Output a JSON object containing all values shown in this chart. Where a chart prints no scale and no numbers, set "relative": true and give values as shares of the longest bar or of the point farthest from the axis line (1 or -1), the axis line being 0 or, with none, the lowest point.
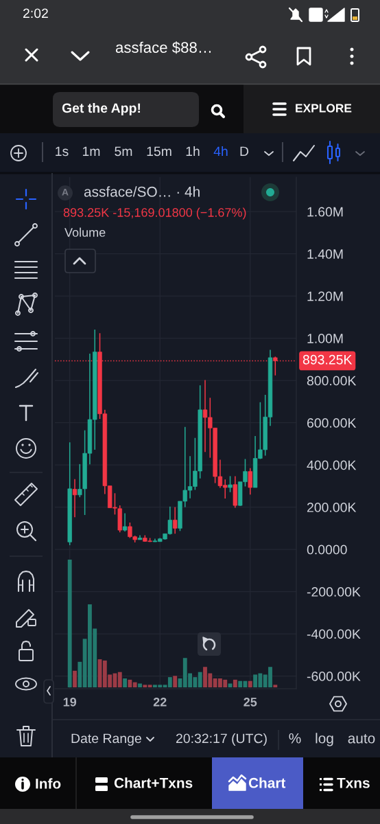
{
  "chart_data": [
    {
      "type": "candlestick",
      "title": "assface/SO… · 4h",
      "categories": [
        "19",
        null,
        null,
        null,
        null,
        null,
        null,
        null,
        null,
        null,
        null,
        null,
        null,
        null,
        null,
        null,
        null,
        null,
        "22",
        null,
        null,
        null,
        null,
        null,
        null,
        null,
        null,
        null,
        null,
        null,
        null,
        null,
        null,
        null,
        null,
        null,
        "25",
        null,
        null,
        null,
        null,
        null
      ],
      "ohlc": [
        [
          35000,
          507000,
          20000,
          287000
        ],
        [
          285000,
          333000,
          152000,
          258000
        ],
        [
          258000,
          404000,
          247000,
          285000
        ],
        [
          287000,
          564000,
          163000,
          455000
        ],
        [
          455000,
          927000,
          403000,
          615000
        ],
        [
          615000,
          1041000,
          472000,
          935000
        ],
        [
          935000,
          1024000,
          618000,
          642000
        ],
        [
          642000,
          661000,
          262000,
          301000
        ],
        [
          301000,
          301000,
          197000,
          197000
        ],
        [
          199000,
          266000,
          165000,
          195000
        ],
        [
          193000,
          208000,
          81000,
          91000
        ],
        [
          91000,
          171000,
          85000,
          108000
        ],
        [
          108000,
          127000,
          54000,
          60000
        ],
        [
          60000,
          65000,
          33000,
          46000
        ],
        [
          46000,
          67000,
          46000,
          54000
        ],
        [
          54000,
          67000,
          36000,
          38000
        ],
        [
          40000,
          54000,
          35000,
          37000
        ],
        [
          36000,
          51000,
          35000,
          40000
        ],
        [
          37000,
          54000,
          36000,
          50000
        ],
        [
          49000,
          74000,
          46000,
          74000
        ],
        [
          74000,
          203000,
          70000,
          139000
        ],
        [
          139000,
          200000,
          74000,
          100000
        ],
        [
          100000,
          228000,
          87000,
          228000
        ],
        [
          228000,
          580000,
          200000,
          280000
        ],
        [
          280000,
          442000,
          242000,
          298000
        ],
        [
          298000,
          528000,
          282000,
          371000
        ],
        [
          371000,
          777000,
          336000,
          661000
        ],
        [
          661000,
          802000,
          461000,
          625000
        ],
        [
          625000,
          718000,
          434000,
          575000
        ],
        [
          575000,
          575000,
          314000,
          345000
        ],
        [
          345000,
          425000,
          291000,
          301000
        ],
        [
          304000,
          331000,
          241000,
          293000
        ],
        [
          293000,
          347000,
          271000,
          306000
        ],
        [
          307000,
          347000,
          197000,
          208000
        ],
        [
          208000,
          320000,
          206000,
          320000
        ],
        [
          320000,
          428000,
          298000,
          369000
        ],
        [
          369000,
          385000,
          260000,
          293000
        ],
        [
          293000,
          537000,
          293000,
          431000
        ],
        [
          431000,
          697000,
          428000,
          472000
        ],
        [
          472000,
          732000,
          444000,
          627000
        ],
        [
          627000,
          945000,
          585000,
          908000
        ],
        [
          908000,
          913000,
          824000,
          893250
        ]
      ],
      "colors": [
        "#22ab94",
        "#f23645",
        "#22ab94",
        "#22ab94",
        "#22ab94",
        "#22ab94",
        "#f23645",
        "#f23645",
        "#f23645",
        "#f23645",
        "#f23645",
        "#22ab94",
        "#f23645",
        "#f23645",
        "#22ab94",
        "#f23645",
        "#f23645",
        "#22ab94",
        "#22ab94",
        "#22ab94",
        "#22ab94",
        "#f23645",
        "#22ab94",
        "#22ab94",
        "#22ab94",
        "#22ab94",
        "#22ab94",
        "#f23645",
        "#f23645",
        "#f23645",
        "#f23645",
        "#f23645",
        "#22ab94",
        "#f23645",
        "#22ab94",
        "#22ab94",
        "#f23645",
        "#22ab94",
        "#22ab94",
        "#22ab94",
        "#22ab94",
        "#f23645"
      ],
      "ylim": [
        -660000,
        1763000
      ],
      "yticks": [
        {
          "value": 1600000,
          "label": "1.60M"
        },
        {
          "value": 1400000,
          "label": "1.40M"
        },
        {
          "value": 1200000,
          "label": "1.20M"
        },
        {
          "value": 1000000,
          "label": "1.00M"
        },
        {
          "value": 800000,
          "label": "800.00K"
        },
        {
          "value": 600000,
          "label": "600.00K"
        },
        {
          "value": 400000,
          "label": "400.00K"
        },
        {
          "value": 200000,
          "label": "200.00K"
        },
        {
          "value": 0,
          "label": "0.0000"
        },
        {
          "value": -200000,
          "label": "-200.00K"
        },
        {
          "value": -400000,
          "label": "-400.00K"
        },
        {
          "value": -600000,
          "label": "-600.00K"
        }
      ],
      "grid": true,
      "ref_lines": [
        {
          "axis": "y",
          "value": 893250,
          "label": "893.25K",
          "color": "#f23645",
          "line_style": "dotted"
        }
      ],
      "annotations": [
        "2:02",
        "assface $88…",
        "Get the App!",
        "EXPLORE",
        "1s",
        "1m",
        "5m",
        "15m",
        "1h",
        "4h",
        "D",
        "A",
        "893.25K -15,169.01800 (−1.67%)",
        "Date Range",
        "20:32:17 (UTC)",
        "%",
        "log",
        "auto",
        "Info",
        "Chart+Txns",
        "Chart",
        "Txns"
      ]
    },
    {
      "type": "bar",
      "title": "Volume",
      "categories": [
        "19",
        null,
        null,
        null,
        null,
        null,
        null,
        null,
        null,
        null,
        null,
        null,
        null,
        null,
        null,
        null,
        null,
        null,
        "22",
        null,
        null,
        null,
        null,
        null,
        null,
        null,
        null,
        null,
        null,
        null,
        null,
        null,
        null,
        null,
        null,
        null,
        "25",
        null,
        null,
        null,
        null,
        null
      ],
      "values": [
        1.0,
        0.13,
        0.2,
        0.38,
        0.65,
        0.46,
        0.22,
        0.21,
        0.1,
        0.11,
        0.12,
        0.07,
        0.06,
        0.04,
        0.03,
        0.02,
        0.02,
        0.02,
        0.02,
        0.02,
        0.08,
        0.09,
        0.07,
        0.23,
        0.11,
        0.08,
        0.12,
        0.16,
        0.11,
        0.07,
        0.07,
        0.06,
        0.03,
        0.06,
        0.05,
        0.05,
        0.05,
        0.1,
        0.11,
        0.1,
        0.16,
        0.02
      ],
      "colors": [
        "#237a6e",
        "#9c3b46",
        "#237a6e",
        "#237a6e",
        "#237a6e",
        "#237a6e",
        "#9c3b46",
        "#9c3b46",
        "#9c3b46",
        "#9c3b46",
        "#9c3b46",
        "#237a6e",
        "#9c3b46",
        "#9c3b46",
        "#237a6e",
        "#9c3b46",
        "#9c3b46",
        "#237a6e",
        "#237a6e",
        "#237a6e",
        "#237a6e",
        "#9c3b46",
        "#237a6e",
        "#237a6e",
        "#237a6e",
        "#237a6e",
        "#237a6e",
        "#9c3b46",
        "#9c3b46",
        "#9c3b46",
        "#9c3b46",
        "#9c3b46",
        "#237a6e",
        "#9c3b46",
        "#237a6e",
        "#237a6e",
        "#9c3b46",
        "#237a6e",
        "#237a6e",
        "#237a6e",
        "#237a6e",
        "#9c3b46"
      ],
      "relative": true,
      "tick_labels": false
    }
  ]
}
